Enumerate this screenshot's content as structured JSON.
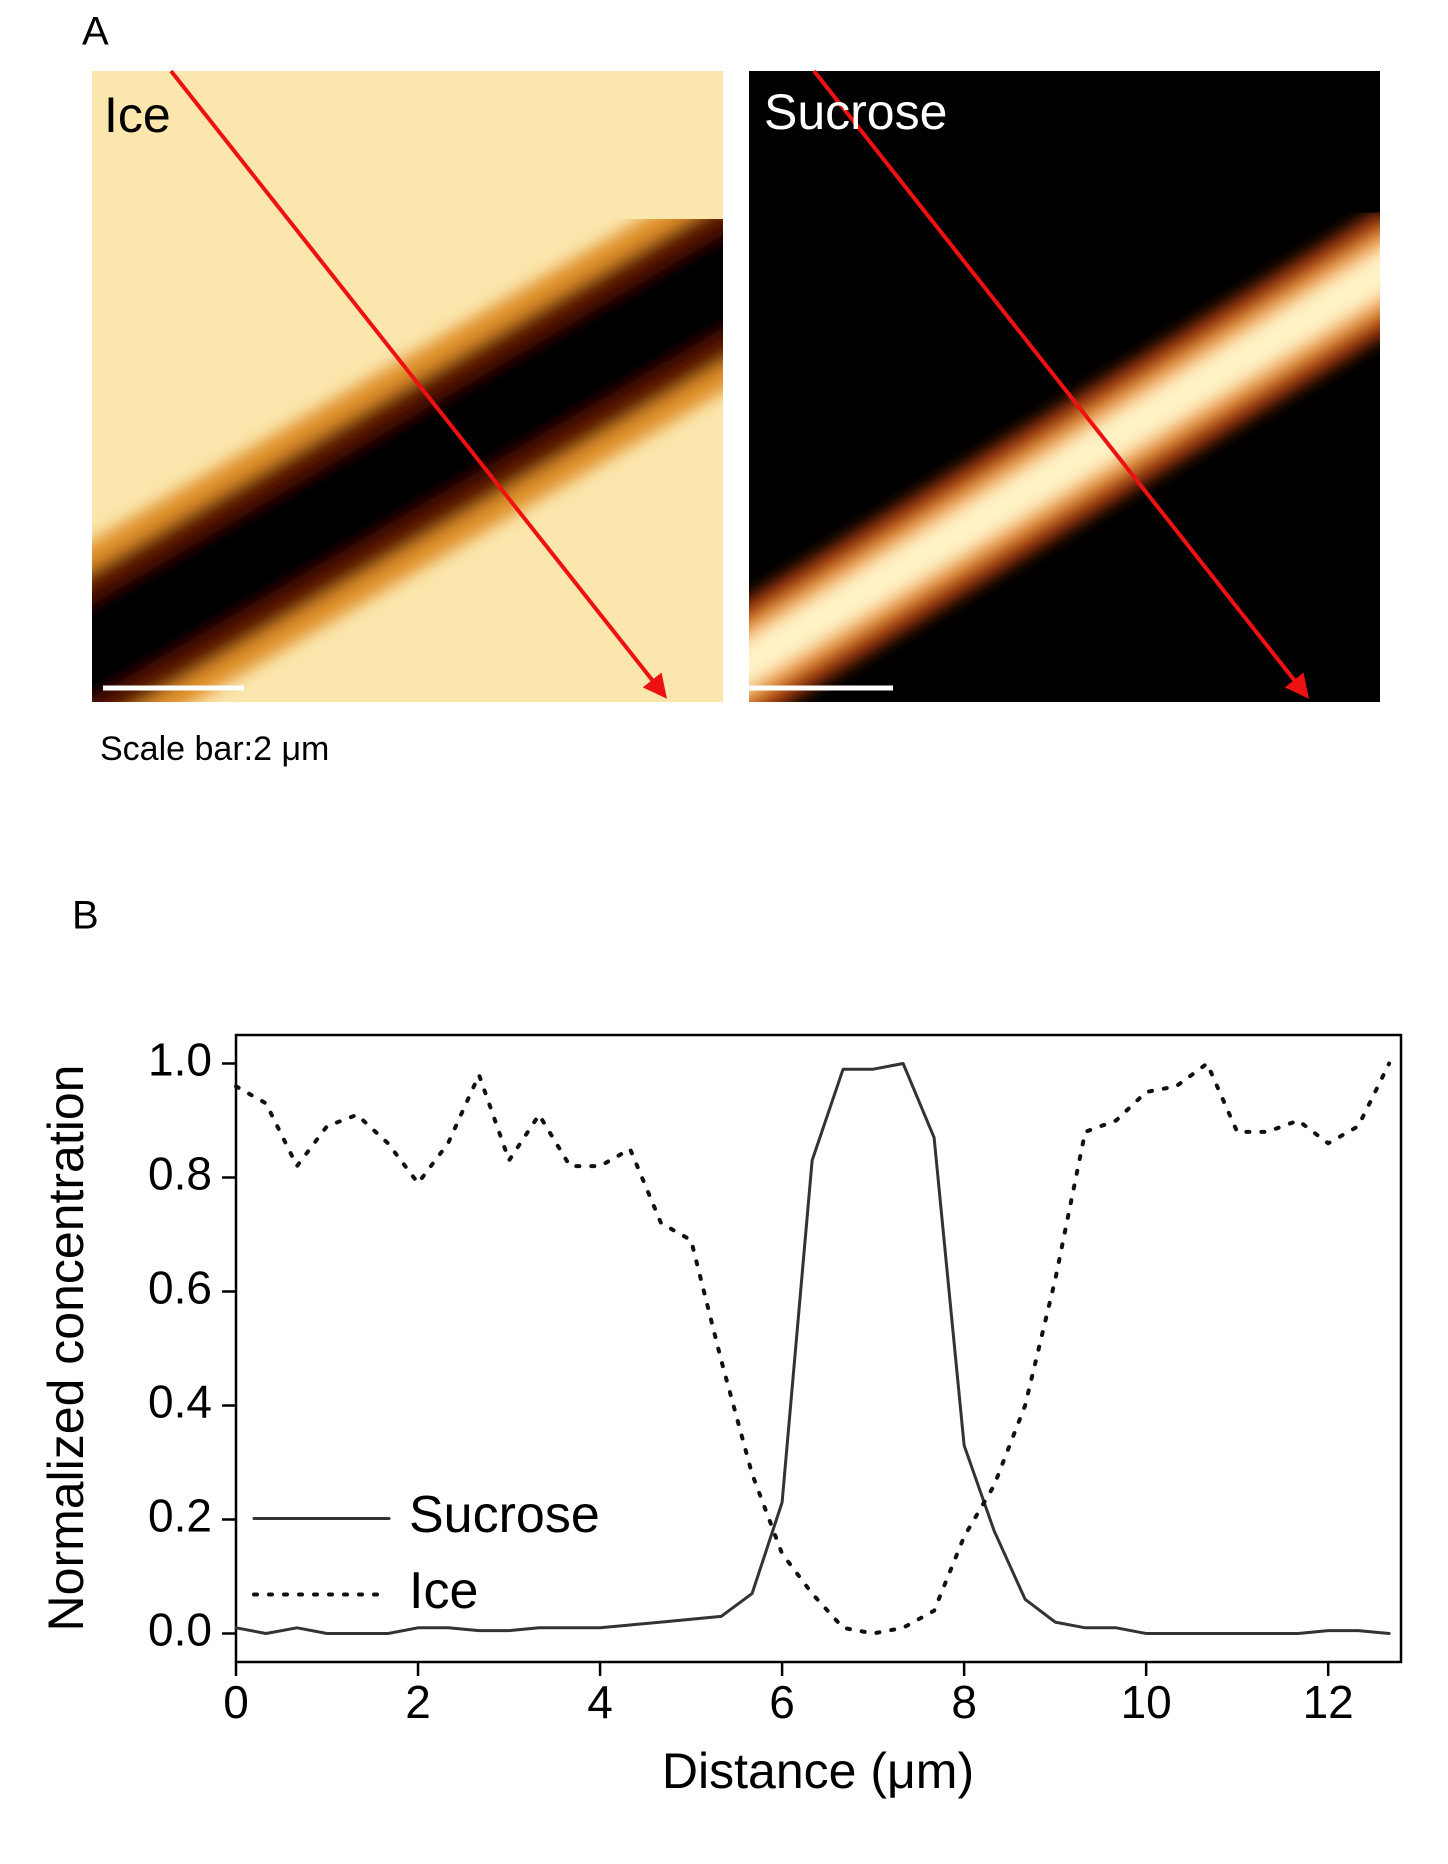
{
  "panel_a": {
    "label": "A",
    "image_labels": [
      "Ice",
      "Sucrose"
    ],
    "scale_note": "Scale bar:2 μm"
  },
  "chart_data": {
    "type": "line",
    "panel_label": "B",
    "x_label": "Distance (μm)",
    "y_label": "Normalized concentration",
    "x": [
      0,
      0.33,
      0.67,
      1,
      1.33,
      1.67,
      2,
      2.33,
      2.67,
      3,
      3.33,
      3.67,
      4,
      4.33,
      4.67,
      5,
      5.33,
      5.67,
      6,
      6.33,
      6.67,
      7,
      7.33,
      7.67,
      8,
      8.33,
      8.67,
      9,
      9.33,
      9.67,
      10,
      10.33,
      10.67,
      11,
      11.33,
      11.67,
      12,
      12.33,
      12.67
    ],
    "series": [
      {
        "name": "Sucrose",
        "color": "#333333",
        "dash": "solid",
        "values": [
          0.01,
          0,
          0.01,
          0,
          0,
          0,
          0.01,
          0.01,
          0.005,
          0.005,
          0.01,
          0.01,
          0.01,
          0.015,
          0.02,
          0.025,
          0.03,
          0.07,
          0.23,
          0.83,
          0.99,
          0.99,
          1.0,
          0.87,
          0.33,
          0.18,
          0.06,
          0.02,
          0.01,
          0.01,
          0,
          0,
          0,
          0,
          0,
          0,
          0.005,
          0.005,
          0
        ]
      },
      {
        "name": "Ice",
        "color": "#111111",
        "dash": "dotted",
        "values": [
          0.96,
          0.93,
          0.82,
          0.89,
          0.91,
          0.86,
          0.79,
          0.86,
          0.98,
          0.83,
          0.91,
          0.82,
          0.82,
          0.85,
          0.72,
          0.69,
          0.48,
          0.28,
          0.14,
          0.07,
          0.01,
          0,
          0.01,
          0.04,
          0.17,
          0.26,
          0.4,
          0.62,
          0.88,
          0.9,
          0.95,
          0.96,
          1.0,
          0.88,
          0.88,
          0.9,
          0.86,
          0.89,
          1.0
        ]
      }
    ],
    "xlim": [
      0,
      12.8
    ],
    "ylim": [
      -0.05,
      1.05
    ],
    "xticks": [
      0,
      2,
      4,
      6,
      8,
      10,
      12
    ],
    "yticks": [
      {
        "value": 0,
        "label": "0.0"
      },
      {
        "value": 0.2,
        "label": "0.2"
      },
      {
        "value": 0.4,
        "label": "0.4"
      },
      {
        "value": 0.6,
        "label": "0.6"
      },
      {
        "value": 0.8,
        "label": "0.8"
      },
      {
        "value": 1.0,
        "label": "1.0"
      }
    ],
    "legend": "center left",
    "grid": false
  }
}
